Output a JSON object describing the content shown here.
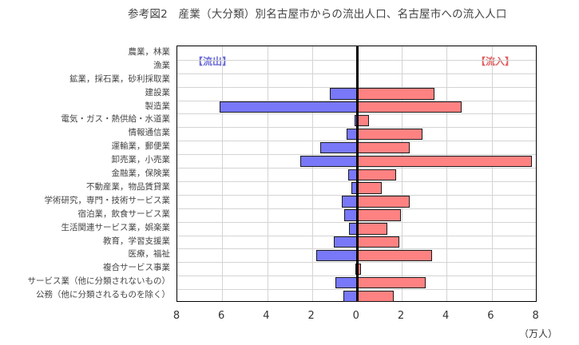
{
  "title": "参考図2　産業（大分類）別名古屋市からの流出人口、名古屋市への流入人口",
  "legend": {
    "outflow": "【流出】",
    "inflow": "【流入】"
  },
  "colors": {
    "outflow": "#7878f8",
    "inflow": "#ff8282",
    "outflow_label": "#6a6ad8",
    "inflow_label": "#e06060"
  },
  "axis": {
    "ticks": [
      "8",
      "6",
      "4",
      "2",
      "0",
      "2",
      "4",
      "6",
      "8"
    ],
    "unit": "（万人）"
  },
  "chart_data": {
    "type": "bar",
    "orientation": "horizontal-butterfly",
    "title": "参考図2　産業（大分類）別名古屋市からの流出人口、名古屋市への流入人口",
    "xlabel": "（万人）",
    "ylabel": "",
    "xlim": [
      -8,
      8
    ],
    "grid": true,
    "legend_position": "inside-top (流出 left, 流入 right)",
    "categories": [
      "農業，林業",
      "漁業",
      "鉱業，採石業，砂利採取業",
      "建設業",
      "製造業",
      "電気・ガス・熱供給・水道業",
      "情報通信業",
      "運輸業，郵便業",
      "卸売業，小売業",
      "金融業，保険業",
      "不動産業，物品賃貸業",
      "学術研究，専門・技術サービス業",
      "宿泊業，飲食サービス業",
      "生活関連サービス業，娯楽業",
      "教育，学習支援業",
      "医療，福祉",
      "複合サービス事業",
      "サービス業（他に分類されないもの）",
      "公務（他に分類されるものを除く）"
    ],
    "series": [
      {
        "name": "流出",
        "values": [
          0.02,
          0.0,
          0.01,
          1.22,
          6.11,
          0.11,
          0.45,
          1.64,
          2.53,
          0.38,
          0.25,
          0.66,
          0.57,
          0.34,
          1.02,
          1.8,
          0.06,
          0.95,
          0.59
        ]
      },
      {
        "name": "流入",
        "values": [
          0.02,
          0.0,
          0.01,
          3.4,
          4.64,
          0.5,
          2.88,
          2.31,
          7.76,
          1.71,
          1.07,
          2.33,
          1.91,
          1.32,
          1.84,
          3.32,
          0.15,
          3.03,
          1.61
        ]
      }
    ]
  }
}
